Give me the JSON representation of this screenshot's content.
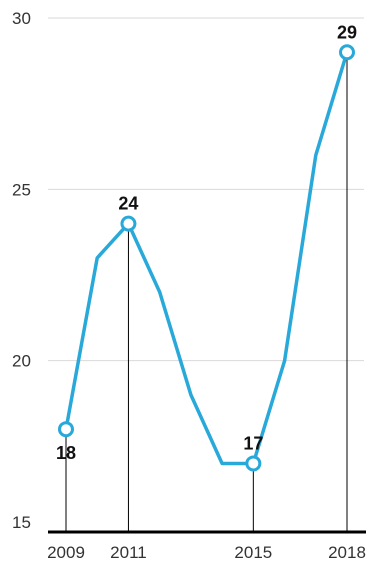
{
  "chart_data": {
    "type": "line",
    "title": "",
    "xlabel": "",
    "ylabel": "",
    "x": [
      2009,
      2010,
      2011,
      2012,
      2013,
      2014,
      2015,
      2016,
      2017,
      2018
    ],
    "series": [
      {
        "values": [
          18,
          23,
          24,
          22,
          19,
          17,
          17,
          20,
          26,
          29
        ]
      }
    ],
    "ylim": [
      15,
      30
    ],
    "y_ticks": [
      15,
      20,
      25,
      30
    ],
    "x_tick_labels": [
      "2009",
      "2011",
      "2015",
      "2018"
    ],
    "highlighted_points": [
      {
        "x": 2009,
        "y": 18,
        "label": "18"
      },
      {
        "x": 2011,
        "y": 24,
        "label": "24"
      },
      {
        "x": 2015,
        "y": 17,
        "label": "17"
      },
      {
        "x": 2018,
        "y": 29,
        "label": "29"
      }
    ],
    "grid": true,
    "colors": {
      "line": "#29a9d9",
      "grid": "#d9d9d9",
      "axis": "#000000",
      "drop_line": "#000000"
    }
  }
}
